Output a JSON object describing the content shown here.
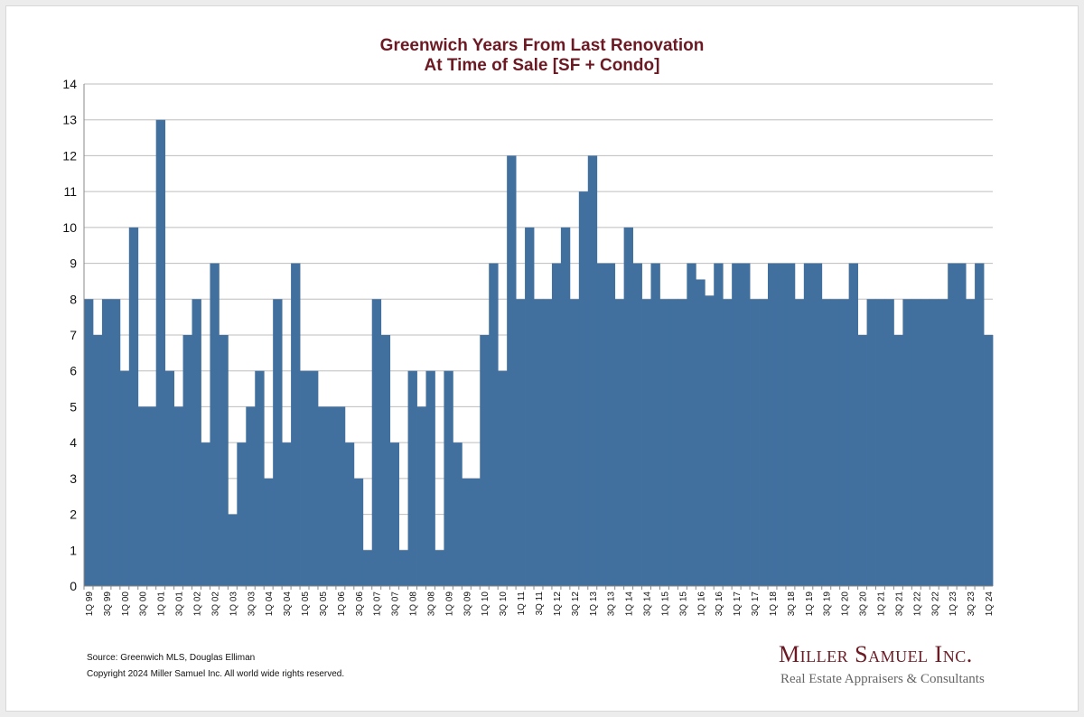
{
  "chart_data": {
    "type": "bar",
    "title_line1": "Greenwich Years From Last Renovation",
    "title_line2": "At Time of Sale [SF + Condo]",
    "xlabel": "",
    "ylabel": "",
    "ylim": [
      0,
      14
    ],
    "yticks": [
      0,
      1,
      2,
      3,
      4,
      5,
      6,
      7,
      8,
      9,
      10,
      11,
      12,
      13,
      14
    ],
    "grid": true,
    "bar_color": "#41709f",
    "categories": [
      "1Q 99",
      "2Q 99",
      "3Q 99",
      "4Q 99",
      "1Q 00",
      "2Q 00",
      "3Q 00",
      "4Q 00",
      "1Q 01",
      "2Q 01",
      "3Q 01",
      "4Q 01",
      "1Q 02",
      "2Q 02",
      "3Q 02",
      "4Q 02",
      "1Q 03",
      "2Q 03",
      "3Q 03",
      "4Q 03",
      "1Q 04",
      "2Q 04",
      "3Q 04",
      "4Q 04",
      "1Q 05",
      "2Q 05",
      "3Q 05",
      "4Q 05",
      "1Q 06",
      "2Q 06",
      "3Q 06",
      "4Q 06",
      "1Q 07",
      "2Q 07",
      "3Q 07",
      "4Q 07",
      "1Q 08",
      "2Q 08",
      "3Q 08",
      "4Q 08",
      "1Q 09",
      "2Q 09",
      "3Q 09",
      "4Q 09",
      "1Q 10",
      "2Q 10",
      "3Q 10",
      "4Q 10",
      "1Q 11",
      "2Q 11",
      "3Q 11",
      "4Q 11",
      "1Q 12",
      "2Q 12",
      "3Q 12",
      "4Q 12",
      "1Q 13",
      "2Q 13",
      "3Q 13",
      "4Q 13",
      "1Q 14",
      "2Q 14",
      "3Q 14",
      "4Q 14",
      "1Q 15",
      "2Q 15",
      "3Q 15",
      "4Q 15",
      "1Q 16",
      "2Q 16",
      "3Q 16",
      "4Q 16",
      "1Q 17",
      "2Q 17",
      "3Q 17",
      "4Q 17",
      "1Q 18",
      "2Q 18",
      "3Q 18",
      "4Q 18",
      "1Q 19",
      "2Q 19",
      "3Q 19",
      "4Q 19",
      "1Q 20",
      "2Q 20",
      "3Q 20",
      "4Q 20",
      "1Q 21",
      "2Q 21",
      "3Q 21",
      "4Q 21",
      "1Q 22",
      "2Q 22",
      "3Q 22",
      "4Q 22",
      "1Q 23",
      "2Q 23",
      "3Q 23",
      "4Q 23",
      "1Q 24"
    ],
    "values": [
      8,
      7,
      8,
      8,
      6,
      10,
      5,
      5,
      13,
      6,
      5,
      7,
      8,
      4,
      9,
      7,
      2,
      4,
      5,
      6,
      3,
      8,
      4,
      9,
      6,
      6,
      5,
      5,
      5,
      4,
      3,
      1,
      8,
      7,
      4,
      1,
      6,
      5,
      6,
      1,
      6,
      4,
      3,
      3,
      7,
      9,
      6,
      12,
      8,
      10,
      8,
      8,
      9,
      10,
      8,
      11,
      12,
      9,
      9,
      8,
      10,
      9,
      8,
      9,
      8,
      8,
      8,
      9,
      8.55,
      8.1,
      9,
      8,
      9,
      9,
      8,
      8,
      9,
      9,
      9,
      8,
      9,
      9,
      8,
      8,
      8,
      9,
      7,
      8,
      8,
      8,
      7,
      8,
      8,
      8,
      8,
      8,
      9,
      9,
      8,
      9,
      7
    ]
  },
  "footer": {
    "source": "Source: Greenwich MLS, Douglas Elliman",
    "copyright": "Copyright 2024 Miller Samuel Inc.  All world wide rights reserved."
  },
  "logo": {
    "name": "Miller Samuel Inc.",
    "tagline": "Real Estate Appraisers & Consultants"
  }
}
